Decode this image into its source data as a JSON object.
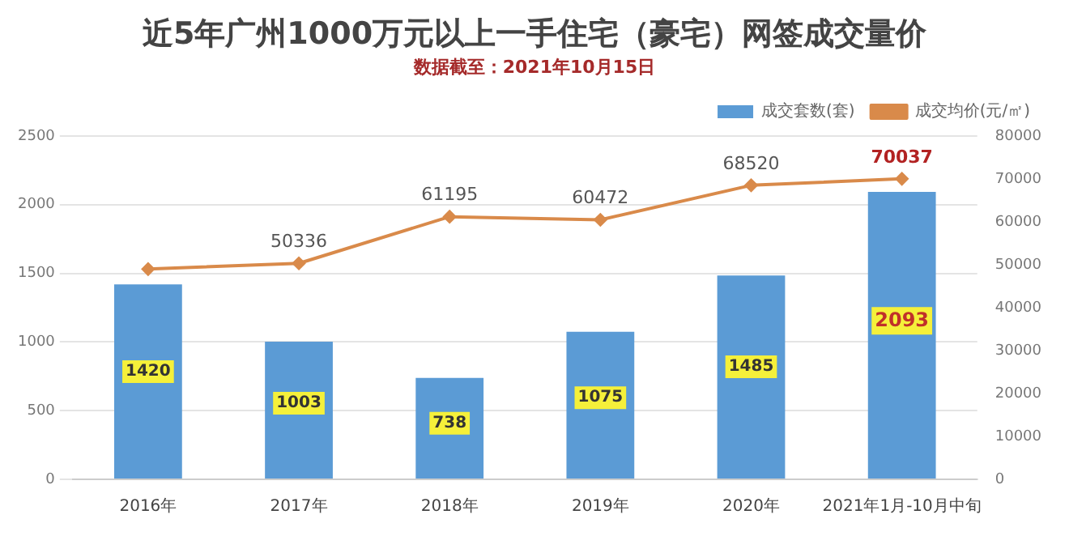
{
  "chart_data": {
    "type": "bar",
    "title": "近5年广州1000万元以上一手住宅（豪宅）网签成交量价",
    "subtitle": "数据截至：2021年10月15日",
    "categories": [
      "2016年",
      "2017年",
      "2018年",
      "2019年",
      "2020年",
      "2021年1月-10月中旬"
    ],
    "series": [
      {
        "name": "成交套数(套)",
        "color": "#5b9bd5",
        "values": [
          1420,
          1003,
          738,
          1075,
          1485,
          2093
        ],
        "value_labels": [
          "1420",
          "1003",
          "738",
          "1075",
          "1485",
          "2093"
        ]
      },
      {
        "name": "成交均价(元/㎡)",
        "type": "line",
        "axis": "y2",
        "color": "#d98a4a",
        "marker": "diamond",
        "values": [
          49000,
          50336,
          61195,
          60472,
          68520,
          70037
        ],
        "value_labels": [
          null,
          "50336",
          "61195",
          "60472",
          "68520",
          "70037"
        ]
      }
    ],
    "ylim": [
      0,
      2500
    ],
    "yticks": [
      0,
      500,
      1000,
      1500,
      2000,
      2500
    ],
    "y2lim": [
      0,
      80000
    ],
    "y2ticks": [
      0,
      10000,
      20000,
      30000,
      40000,
      50000,
      60000,
      70000,
      80000
    ],
    "grid": "y",
    "legend": "top right"
  }
}
